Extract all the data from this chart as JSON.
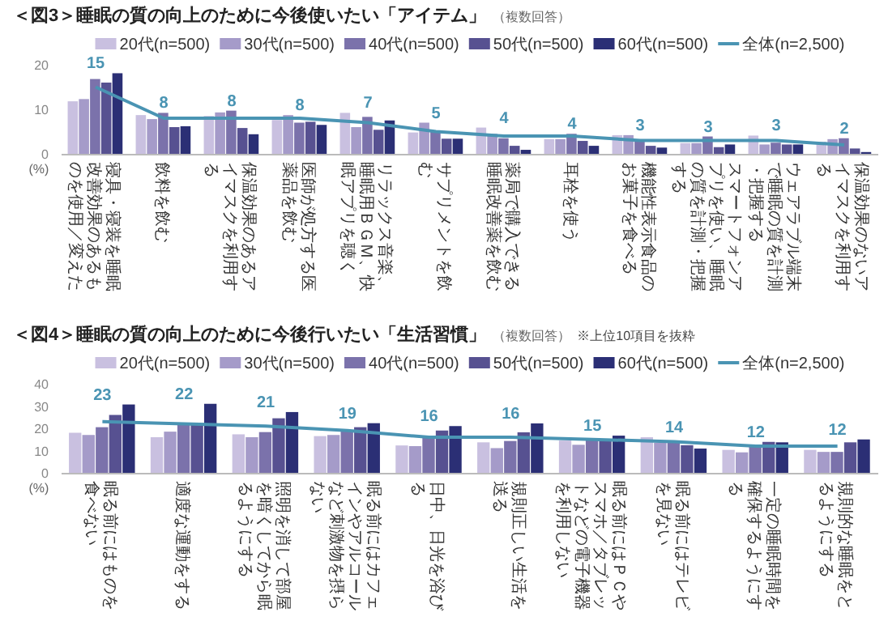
{
  "chart_data": [
    {
      "type": "bar",
      "title": "＜図3＞睡眠の質の向上のために今後使いたい「アイテム」",
      "subtitle": "（複数回答）",
      "ylabel": "(%)",
      "legend": "top",
      "ylim": [
        0,
        20
      ],
      "yticks": [
        0,
        10,
        20
      ],
      "categories": [
        "寝具・寝装を睡眠改善効果のあるものを使用／変えた",
        "飲料を飲む",
        "保温効果のあるアイマスクを利用する",
        "医師が処方する医薬品を飲む",
        "リラックス音楽、睡眠用ＢＧＭ、快眠アプリを聴く",
        "サプリメントを飲む",
        "薬局で購入できる睡眠改善薬を飲む",
        "耳栓を使う",
        "機能性表示食品のお菓子を食べる",
        "スマートフォンアプリを使い、睡眠の質を計測・把握する",
        "ウェアラブル端末で睡眠の質を計測・把握する",
        "保温効果のないアイマスクを利用する"
      ],
      "series": [
        {
          "name": "20代(n=500)",
          "color": "#c9c0e0",
          "values": [
            11.8,
            8.7,
            8.5,
            7.6,
            9.2,
            4.8,
            5.9,
            3.3,
            4.2,
            2.4,
            4.1,
            2.7
          ]
        },
        {
          "name": "30代(n=500)",
          "color": "#a59bc9",
          "values": [
            12.3,
            7.8,
            9.3,
            8.7,
            6,
            7,
            4.5,
            3.3,
            4.2,
            2.4,
            2.1,
            3.3
          ]
        },
        {
          "name": "40代(n=500)",
          "color": "#7b72ab",
          "values": [
            16.8,
            9.2,
            9.7,
            7,
            8.3,
            5,
            3.5,
            4.5,
            3.1,
            3.9,
            2.5,
            3.5
          ]
        },
        {
          "name": "50代(n=500)",
          "color": "#575191",
          "values": [
            16,
            6,
            5.8,
            7.2,
            5.4,
            3.4,
            1.8,
            2.9,
            1.8,
            1.5,
            2.1,
            1.2
          ]
        },
        {
          "name": "60代(n=500)",
          "color": "#2b2f75",
          "values": [
            18.1,
            6.2,
            4.4,
            6.5,
            7.5,
            3.4,
            0.9,
            1.8,
            1.4,
            2.1,
            2.1,
            0.4
          ]
        },
        {
          "name": "全体(n=2,500)",
          "type": "line",
          "color": "#4a94b3",
          "marker": "none",
          "values": [
            15,
            8,
            8,
            8,
            7,
            5,
            4,
            4,
            3,
            3,
            3,
            2
          ],
          "value_labels": [
            "15",
            "8",
            "8",
            "8",
            "7",
            "5",
            "4",
            "4",
            "3",
            "3",
            "3",
            "2"
          ]
        }
      ]
    },
    {
      "type": "bar",
      "title": "＜図4＞睡眠の質の向上のために今後行いたい「生活習慣」",
      "subtitle": "（複数回答）",
      "annotations": [
        "※上位10項目を抜粋"
      ],
      "ylabel": "(%)",
      "legend": "top",
      "ylim": [
        0,
        40
      ],
      "yticks": [
        0,
        10,
        20,
        30,
        40
      ],
      "categories": [
        "眠る前にはものを食べない",
        "適度な運動をする",
        "照明を消して部屋を暗くしてから眠るようにする",
        "眠る前にはカフェインやアルコールなど刺激物を摂らない",
        "日中、日光を浴びる",
        "規則正しい生活を送る",
        "眠る前にはＰＣやスマホ／タブレットなどの電子機器を利用しない",
        "眠る前にはテレビを見ない",
        "一定の睡眠時間を確保するようにする",
        "規則的な睡眠をとるようにする"
      ],
      "series": [
        {
          "name": "20代(n=500)",
          "color": "#c9c0e0",
          "values": [
            18,
            16,
            17.3,
            16.5,
            12.3,
            13.7,
            14.5,
            16,
            10.3,
            10.3
          ]
        },
        {
          "name": "30代(n=500)",
          "color": "#a59bc9",
          "values": [
            17,
            18.5,
            16,
            17,
            12,
            11.1,
            12.6,
            13.5,
            9.2,
            9.4
          ]
        },
        {
          "name": "40代(n=500)",
          "color": "#7b72ab",
          "values": [
            20.5,
            21.5,
            18.3,
            19,
            16.5,
            14.3,
            15,
            13.5,
            11.8,
            9.4
          ]
        },
        {
          "name": "50代(n=500)",
          "color": "#575191",
          "values": [
            26,
            21.5,
            24.5,
            20.5,
            19,
            18.2,
            15,
            12.4,
            13.9,
            13.7
          ]
        },
        {
          "name": "60代(n=500)",
          "color": "#2b2f75",
          "values": [
            30.7,
            31,
            27.3,
            22.3,
            21,
            22.2,
            16.7,
            10.9,
            13.7,
            15
          ]
        },
        {
          "name": "全体(n=2,500)",
          "type": "line",
          "color": "#4a94b3",
          "marker": "none",
          "values": [
            23,
            22,
            21,
            19,
            16,
            16,
            15,
            14,
            12,
            12
          ],
          "value_labels": [
            "23",
            "22",
            "21",
            "19",
            "16",
            "16",
            "15",
            "14",
            "12",
            "12"
          ]
        }
      ]
    }
  ]
}
